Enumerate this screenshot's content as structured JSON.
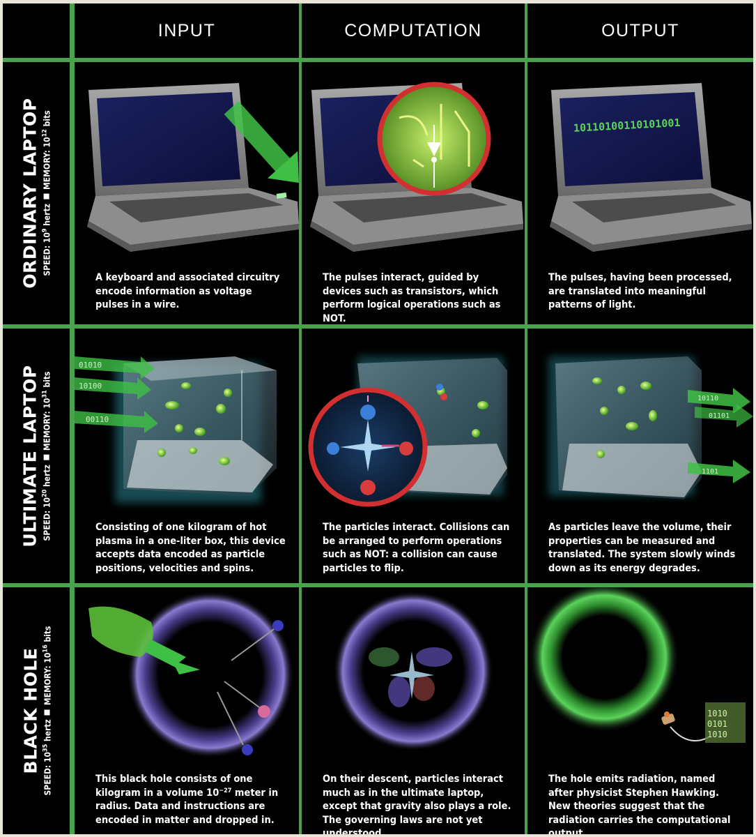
{
  "columns": [
    "INPUT",
    "COMPUTATION",
    "OUTPUT"
  ],
  "rows": [
    {
      "title": "ORDINARY LAPTOP",
      "speed_label": "SPEED: 10",
      "speed_exp": "9",
      "speed_unit": " hertz",
      "memory_label": "MEMORY: 10",
      "memory_exp": "12",
      "memory_unit": " bits",
      "captions": [
        "A keyboard and associated circuitry encode information as voltage pulses in a wire.",
        "The pulses interact, guided by devices such as transistors, which perform logical operations such as NOT.",
        "The pulses, having been processed, are translated into meaningful patterns of light."
      ],
      "screen_text": "10110100110101001"
    },
    {
      "title": "ULTIMATE LAPTOP",
      "speed_label": "SPEED: 10",
      "speed_exp": "20",
      "speed_unit": " hertz",
      "memory_label": "MEMORY: 10",
      "memory_exp": "31",
      "memory_unit": " bits",
      "captions": [
        "Consisting of one kilogram of hot plasma in a one-liter box, this device accepts data encoded as particle positions, velocities and spins.",
        "The particles interact. Collisions can be arranged to perform operations such as NOT: a collision can cause particles to flip.",
        "As particles leave the volume, their properties can be measured and translated. The system slowly winds down as its energy degrades."
      ],
      "input_arrows": [
        "01010",
        "10100",
        "00110"
      ],
      "output_arrows": [
        "10110",
        "01101",
        "1101"
      ]
    },
    {
      "title": "BLACK HOLE",
      "speed_label": "SPEED: 10",
      "speed_exp": "35",
      "speed_unit": " hertz",
      "memory_label": "MEMORY: 10",
      "memory_exp": "16",
      "memory_unit": " bits",
      "captions": [
        {
          "before": "This black hole consists of one kilogram in a volume 10",
          "exp": "−27",
          "after": " meter in radius. Data and instructions are encoded in matter and dropped in."
        },
        "On their descent, particles interact much as in the ultimate laptop, except that gravity also plays a role. The governing laws are not yet  understood.",
        "The hole emits radiation, named after physicist Stephen Hawking. New theories suggest that the radiation carries the computational output."
      ],
      "output_bits": [
        "1010",
        "0101",
        "1010"
      ]
    }
  ],
  "colors": {
    "grid_line": "#4aa24e",
    "cell_bg": "#000000",
    "page_bg": "#e9e4d8",
    "highlight_ring": "#d23030",
    "bit_green": "#5bd35b"
  }
}
